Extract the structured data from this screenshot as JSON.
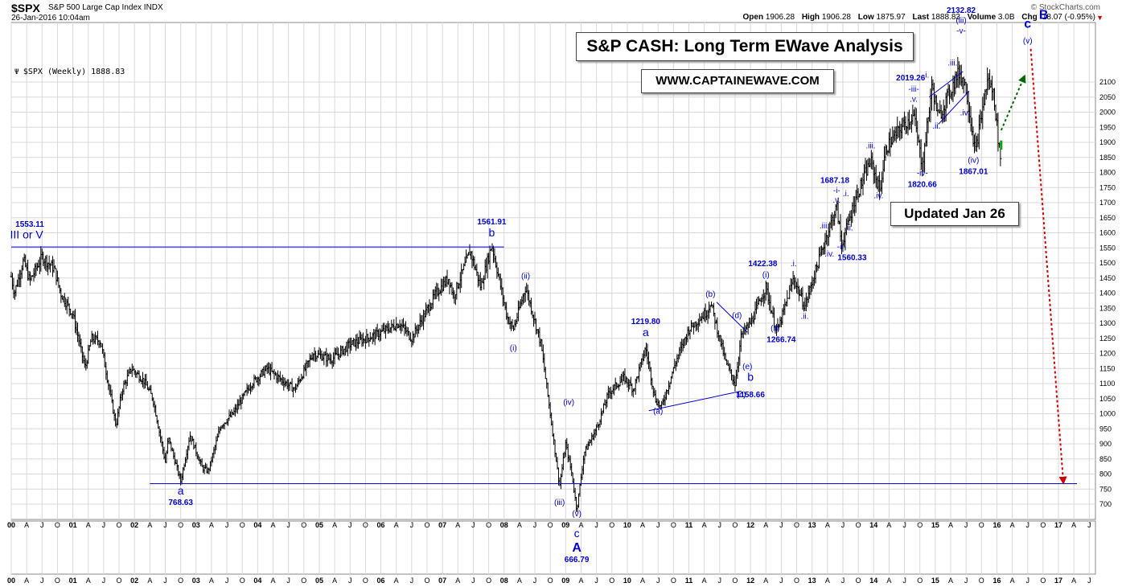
{
  "header": {
    "symbol": "$SPX",
    "name": "S&P 500 Large Cap Index  INDX",
    "datetime": "26-Jan-2016 10:04am",
    "source": "© StockCharts.com",
    "open_label": "Open",
    "open": "1906.28",
    "high_label": "High",
    "high": "1906.28",
    "low_label": "Low",
    "low": "1875.97",
    "last_label": "Last",
    "last": "1888.83",
    "volume_label": "Volume",
    "volume": "3.0B",
    "chg_label": "Chg",
    "chg": "-18.07 (-0.95%)"
  },
  "legend": "$SPX (Weekly) 1888.83",
  "title_box": "S&P CASH: Long Term EWave Analysis",
  "site_box": "WWW.CAPTAINEWAVE.COM",
  "updated_box": "Updated Jan 26",
  "colors": {
    "wave_blue": "#0000cc",
    "price": "#000000",
    "forecast_red": "#cc0000",
    "forecast_green": "#006600",
    "grid": "#d8d8d8"
  },
  "chart_data": {
    "type": "bar",
    "subtype": "weekly price bars (OHLC)",
    "x_unit": "year (decimal)",
    "ylim": [
      650,
      2150
    ],
    "y_ticks": [
      700,
      750,
      800,
      850,
      900,
      950,
      1000,
      1050,
      1100,
      1150,
      1200,
      1250,
      1300,
      1350,
      1400,
      1450,
      1500,
      1550,
      1600,
      1650,
      1700,
      1750,
      1800,
      1850,
      1900,
      1950,
      2000,
      2050,
      2100
    ],
    "x_axis_labels": [
      "00",
      "A",
      "J",
      "O",
      "01",
      "A",
      "J",
      "O",
      "02",
      "A",
      "J",
      "O",
      "03",
      "A",
      "J",
      "O",
      "04",
      "A",
      "J",
      "O",
      "05",
      "A",
      "J",
      "O",
      "06",
      "A",
      "J",
      "O",
      "07",
      "A",
      "J",
      "O",
      "08",
      "A",
      "J",
      "O",
      "09",
      "A",
      "J",
      "O",
      "10",
      "A",
      "J",
      "O",
      "11",
      "A",
      "J",
      "O",
      "12",
      "A",
      "J",
      "O",
      "13",
      "A",
      "J",
      "O",
      "14",
      "A",
      "J",
      "O",
      "15",
      "A",
      "J",
      "O",
      "16",
      "A",
      "J",
      "O",
      "17",
      "A",
      "J"
    ],
    "price_path": [
      [
        2000.0,
        1455
      ],
      [
        2000.05,
        1400
      ],
      [
        2000.2,
        1510
      ],
      [
        2000.3,
        1440
      ],
      [
        2000.5,
        1520
      ],
      [
        2000.7,
        1480
      ],
      [
        2000.8,
        1400
      ],
      [
        2001.0,
        1330
      ],
      [
        2001.2,
        1150
      ],
      [
        2001.3,
        1250
      ],
      [
        2001.45,
        1240
      ],
      [
        2001.7,
        960
      ],
      [
        2001.8,
        1080
      ],
      [
        2001.95,
        1150
      ],
      [
        2002.15,
        1110
      ],
      [
        2002.3,
        1050
      ],
      [
        2002.5,
        840
      ],
      [
        2002.55,
        920
      ],
      [
        2002.75,
        776
      ],
      [
        2002.9,
        930
      ],
      [
        2003.1,
        820
      ],
      [
        2003.2,
        810
      ],
      [
        2003.4,
        960
      ],
      [
        2003.6,
        1000
      ],
      [
        2003.9,
        1100
      ],
      [
        2004.15,
        1150
      ],
      [
        2004.4,
        1110
      ],
      [
        2004.6,
        1080
      ],
      [
        2004.9,
        1200
      ],
      [
        2005.2,
        1180
      ],
      [
        2005.5,
        1230
      ],
      [
        2005.9,
        1260
      ],
      [
        2006.3,
        1300
      ],
      [
        2006.5,
        1250
      ],
      [
        2006.9,
        1400
      ],
      [
        2007.1,
        1450
      ],
      [
        2007.18,
        1390
      ],
      [
        2007.45,
        1540
      ],
      [
        2007.62,
        1420
      ],
      [
        2007.8,
        1561
      ],
      [
        2008.05,
        1320
      ],
      [
        2008.15,
        1280
      ],
      [
        2008.35,
        1420
      ],
      [
        2008.6,
        1230
      ],
      [
        2008.75,
        1000
      ],
      [
        2008.9,
        760
      ],
      [
        2009.0,
        900
      ],
      [
        2009.1,
        800
      ],
      [
        2009.18,
        680
      ],
      [
        2009.3,
        870
      ],
      [
        2009.5,
        950
      ],
      [
        2009.7,
        1070
      ],
      [
        2009.95,
        1120
      ],
      [
        2010.1,
        1080
      ],
      [
        2010.3,
        1219
      ],
      [
        2010.45,
        1050
      ],
      [
        2010.55,
        1020
      ],
      [
        2010.8,
        1180
      ],
      [
        2011.0,
        1280
      ],
      [
        2011.3,
        1340
      ],
      [
        2011.35,
        1370
      ],
      [
        2011.6,
        1170
      ],
      [
        2011.75,
        1100
      ],
      [
        2011.85,
        1260
      ],
      [
        2012.0,
        1300
      ],
      [
        2012.25,
        1420
      ],
      [
        2012.4,
        1290
      ],
      [
        2012.45,
        1280
      ],
      [
        2012.7,
        1450
      ],
      [
        2012.88,
        1355
      ],
      [
        2013.05,
        1470
      ],
      [
        2013.25,
        1600
      ],
      [
        2013.4,
        1687
      ],
      [
        2013.48,
        1560
      ],
      [
        2013.7,
        1710
      ],
      [
        2013.95,
        1840
      ],
      [
        2014.1,
        1740
      ],
      [
        2014.2,
        1880
      ],
      [
        2014.45,
        1950
      ],
      [
        2014.65,
        1990
      ],
      [
        2014.79,
        1820
      ],
      [
        2014.95,
        2090
      ],
      [
        2015.05,
        1980
      ],
      [
        2015.35,
        2120
      ],
      [
        2015.4,
        2132
      ],
      [
        2015.5,
        2080
      ],
      [
        2015.65,
        1867
      ],
      [
        2015.85,
        2110
      ],
      [
        2015.95,
        2060
      ],
      [
        2016.05,
        1850
      ],
      [
        2016.07,
        1888
      ]
    ],
    "levels": [
      {
        "name": "1553.11 resistance",
        "y": 1553,
        "x_from": 2000.0,
        "x_to": 2008.0
      },
      {
        "name": "768.63 support",
        "y": 768,
        "x_from": 2002.25,
        "x_to": 2017.3
      }
    ],
    "trendlines": [
      {
        "from": [
          2010.35,
          1010
        ],
        "to": [
          2011.85,
          1075
        ]
      },
      {
        "from": [
          2011.45,
          1370
        ],
        "to": [
          2011.95,
          1270
        ]
      },
      {
        "from": [
          2014.9,
          2050
        ],
        "to": [
          2015.45,
          2135
        ]
      },
      {
        "from": [
          2015.05,
          1960
        ],
        "to": [
          2015.55,
          2070
        ]
      }
    ],
    "forecast": [
      {
        "color": "green",
        "from": [
          2016.07,
          1940
        ],
        "to": [
          2016.45,
          2120
        ]
      },
      {
        "color": "red",
        "from": [
          2016.55,
          2210
        ],
        "to": [
          2017.08,
          770
        ]
      }
    ],
    "annotations": [
      {
        "text": "1553.11",
        "x": 2000.3,
        "y": 1620,
        "size": 10,
        "bold": true
      },
      {
        "text": "III or V",
        "x": 2000.25,
        "y": 1582,
        "size": 14,
        "bold": false
      },
      {
        "text": "1561.91",
        "x": 2007.8,
        "y": 1628,
        "size": 10,
        "bold": true
      },
      {
        "text": "b",
        "x": 2007.8,
        "y": 1588,
        "size": 14,
        "bold": false
      },
      {
        "text": "a",
        "x": 2002.75,
        "y": 732,
        "size": 14,
        "bold": false
      },
      {
        "text": "768.63",
        "x": 2002.75,
        "y": 697,
        "size": 10,
        "bold": true
      },
      {
        "text": "(i)",
        "x": 2008.15,
        "y": 1210,
        "size": 10,
        "bold": false
      },
      {
        "text": "(ii)",
        "x": 2008.35,
        "y": 1448,
        "size": 10,
        "bold": false
      },
      {
        "text": "(iii)",
        "x": 2008.9,
        "y": 698,
        "size": 10,
        "bold": false
      },
      {
        "text": "(iv)",
        "x": 2009.05,
        "y": 1030,
        "size": 10,
        "bold": false
      },
      {
        "text": "(v)",
        "x": 2009.18,
        "y": 660,
        "size": 10,
        "bold": false
      },
      {
        "text": "1219.80",
        "x": 2010.3,
        "y": 1298,
        "size": 10,
        "bold": true
      },
      {
        "text": "a",
        "x": 2010.3,
        "y": 1258,
        "size": 14,
        "bold": false
      },
      {
        "text": "(a)",
        "x": 2010.5,
        "y": 1000,
        "size": 10,
        "bold": false
      },
      {
        "text": "(b)",
        "x": 2011.35,
        "y": 1388,
        "size": 10,
        "bold": false
      },
      {
        "text": "(c)",
        "x": 2011.85,
        "y": 1055,
        "size": 10,
        "bold": false
      },
      {
        "text": "1158.66",
        "x": 2012.0,
        "y": 1055,
        "size": 10,
        "bold": true
      },
      {
        "text": "(d)",
        "x": 2011.78,
        "y": 1318,
        "size": 10,
        "bold": false
      },
      {
        "text": "(e)",
        "x": 2011.95,
        "y": 1148,
        "size": 10,
        "bold": false
      },
      {
        "text": "b",
        "x": 2012.0,
        "y": 1110,
        "size": 14,
        "bold": false
      },
      {
        "text": "1422.38",
        "x": 2012.2,
        "y": 1490,
        "size": 10,
        "bold": true
      },
      {
        "text": "(i)",
        "x": 2012.25,
        "y": 1452,
        "size": 10,
        "bold": false
      },
      {
        "text": "(ii)",
        "x": 2012.4,
        "y": 1275,
        "size": 10,
        "bold": false
      },
      {
        "text": "1266.74",
        "x": 2012.5,
        "y": 1237,
        "size": 10,
        "bold": true
      },
      {
        "text": ".i.",
        "x": 2012.7,
        "y": 1490,
        "size": 10,
        "bold": false
      },
      {
        "text": ".ii.",
        "x": 2012.88,
        "y": 1315,
        "size": 10,
        "bold": false
      },
      {
        "text": ".iii.",
        "x": 2013.2,
        "y": 1615,
        "size": 10,
        "bold": false
      },
      {
        "text": ".iv.",
        "x": 2013.28,
        "y": 1522,
        "size": 10,
        "bold": false
      },
      {
        "text": "1687.18",
        "x": 2013.37,
        "y": 1765,
        "size": 10,
        "bold": true
      },
      {
        "text": "-i-",
        "x": 2013.4,
        "y": 1732,
        "size": 10,
        "bold": false
      },
      {
        "text": ".v.",
        "x": 2013.4,
        "y": 1700,
        "size": 10,
        "bold": false
      },
      {
        "text": ".i.",
        "x": 2013.55,
        "y": 1722,
        "size": 10,
        "bold": false
      },
      {
        "text": ".ii.",
        "x": 2013.6,
        "y": 1608,
        "size": 10,
        "bold": false
      },
      {
        "text": "-ii-",
        "x": 2013.48,
        "y": 1545,
        "size": 10,
        "bold": false
      },
      {
        "text": "1560.33",
        "x": 2013.65,
        "y": 1510,
        "size": 10,
        "bold": true
      },
      {
        "text": ".iii.",
        "x": 2013.95,
        "y": 1880,
        "size": 10,
        "bold": false
      },
      {
        "text": ".iv.",
        "x": 2014.08,
        "y": 1715,
        "size": 10,
        "bold": false
      },
      {
        "text": "2019.26",
        "x": 2014.6,
        "y": 2105,
        "size": 10,
        "bold": true
      },
      {
        "text": ".i.",
        "x": 2014.85,
        "y": 2115,
        "size": 10,
        "bold": false
      },
      {
        "text": "-iii-",
        "x": 2014.65,
        "y": 2068,
        "size": 10,
        "bold": false
      },
      {
        "text": ".v.",
        "x": 2014.65,
        "y": 2035,
        "size": 10,
        "bold": false
      },
      {
        "text": "-iv-",
        "x": 2014.79,
        "y": 1790,
        "size": 10,
        "bold": false
      },
      {
        "text": "1820.66",
        "x": 2014.79,
        "y": 1752,
        "size": 10,
        "bold": true
      },
      {
        "text": ".ii.",
        "x": 2015.02,
        "y": 1945,
        "size": 10,
        "bold": false
      },
      {
        "text": ".iii.",
        "x": 2015.28,
        "y": 2155,
        "size": 10,
        "bold": false
      },
      {
        "text": ".iv.",
        "x": 2015.48,
        "y": 1990,
        "size": 10,
        "bold": false
      },
      {
        "text": "2132.82",
        "x": 2015.42,
        "y": 2330,
        "size": 10,
        "bold": true
      },
      {
        "text": "(iii)",
        "x": 2015.42,
        "y": 2296,
        "size": 10,
        "bold": false
      },
      {
        "text": "-v-",
        "x": 2015.42,
        "y": 2262,
        "size": 10,
        "bold": false
      },
      {
        "text": "(iv)",
        "x": 2015.62,
        "y": 1832,
        "size": 10,
        "bold": false
      },
      {
        "text": "1867.01",
        "x": 2015.62,
        "y": 1795,
        "size": 10,
        "bold": true
      },
      {
        "text": "(v)",
        "x": 2016.5,
        "y": 2228,
        "size": 10,
        "bold": false
      },
      {
        "text": "c",
        "x": 2016.5,
        "y": 2280,
        "size": 16,
        "bold": true
      },
      {
        "text": "B",
        "x": 2016.76,
        "y": 2310,
        "size": 16,
        "bold": true
      }
    ],
    "lower_panel_annotations": [
      {
        "text": "c",
        "x": 2009.18,
        "size": 14,
        "bold": false,
        "row": 1
      },
      {
        "text": "A",
        "x": 2009.18,
        "size": 16,
        "bold": true,
        "row": 2
      },
      {
        "text": "666.79",
        "x": 2009.18,
        "size": 10,
        "bold": true,
        "row": 3
      }
    ]
  }
}
